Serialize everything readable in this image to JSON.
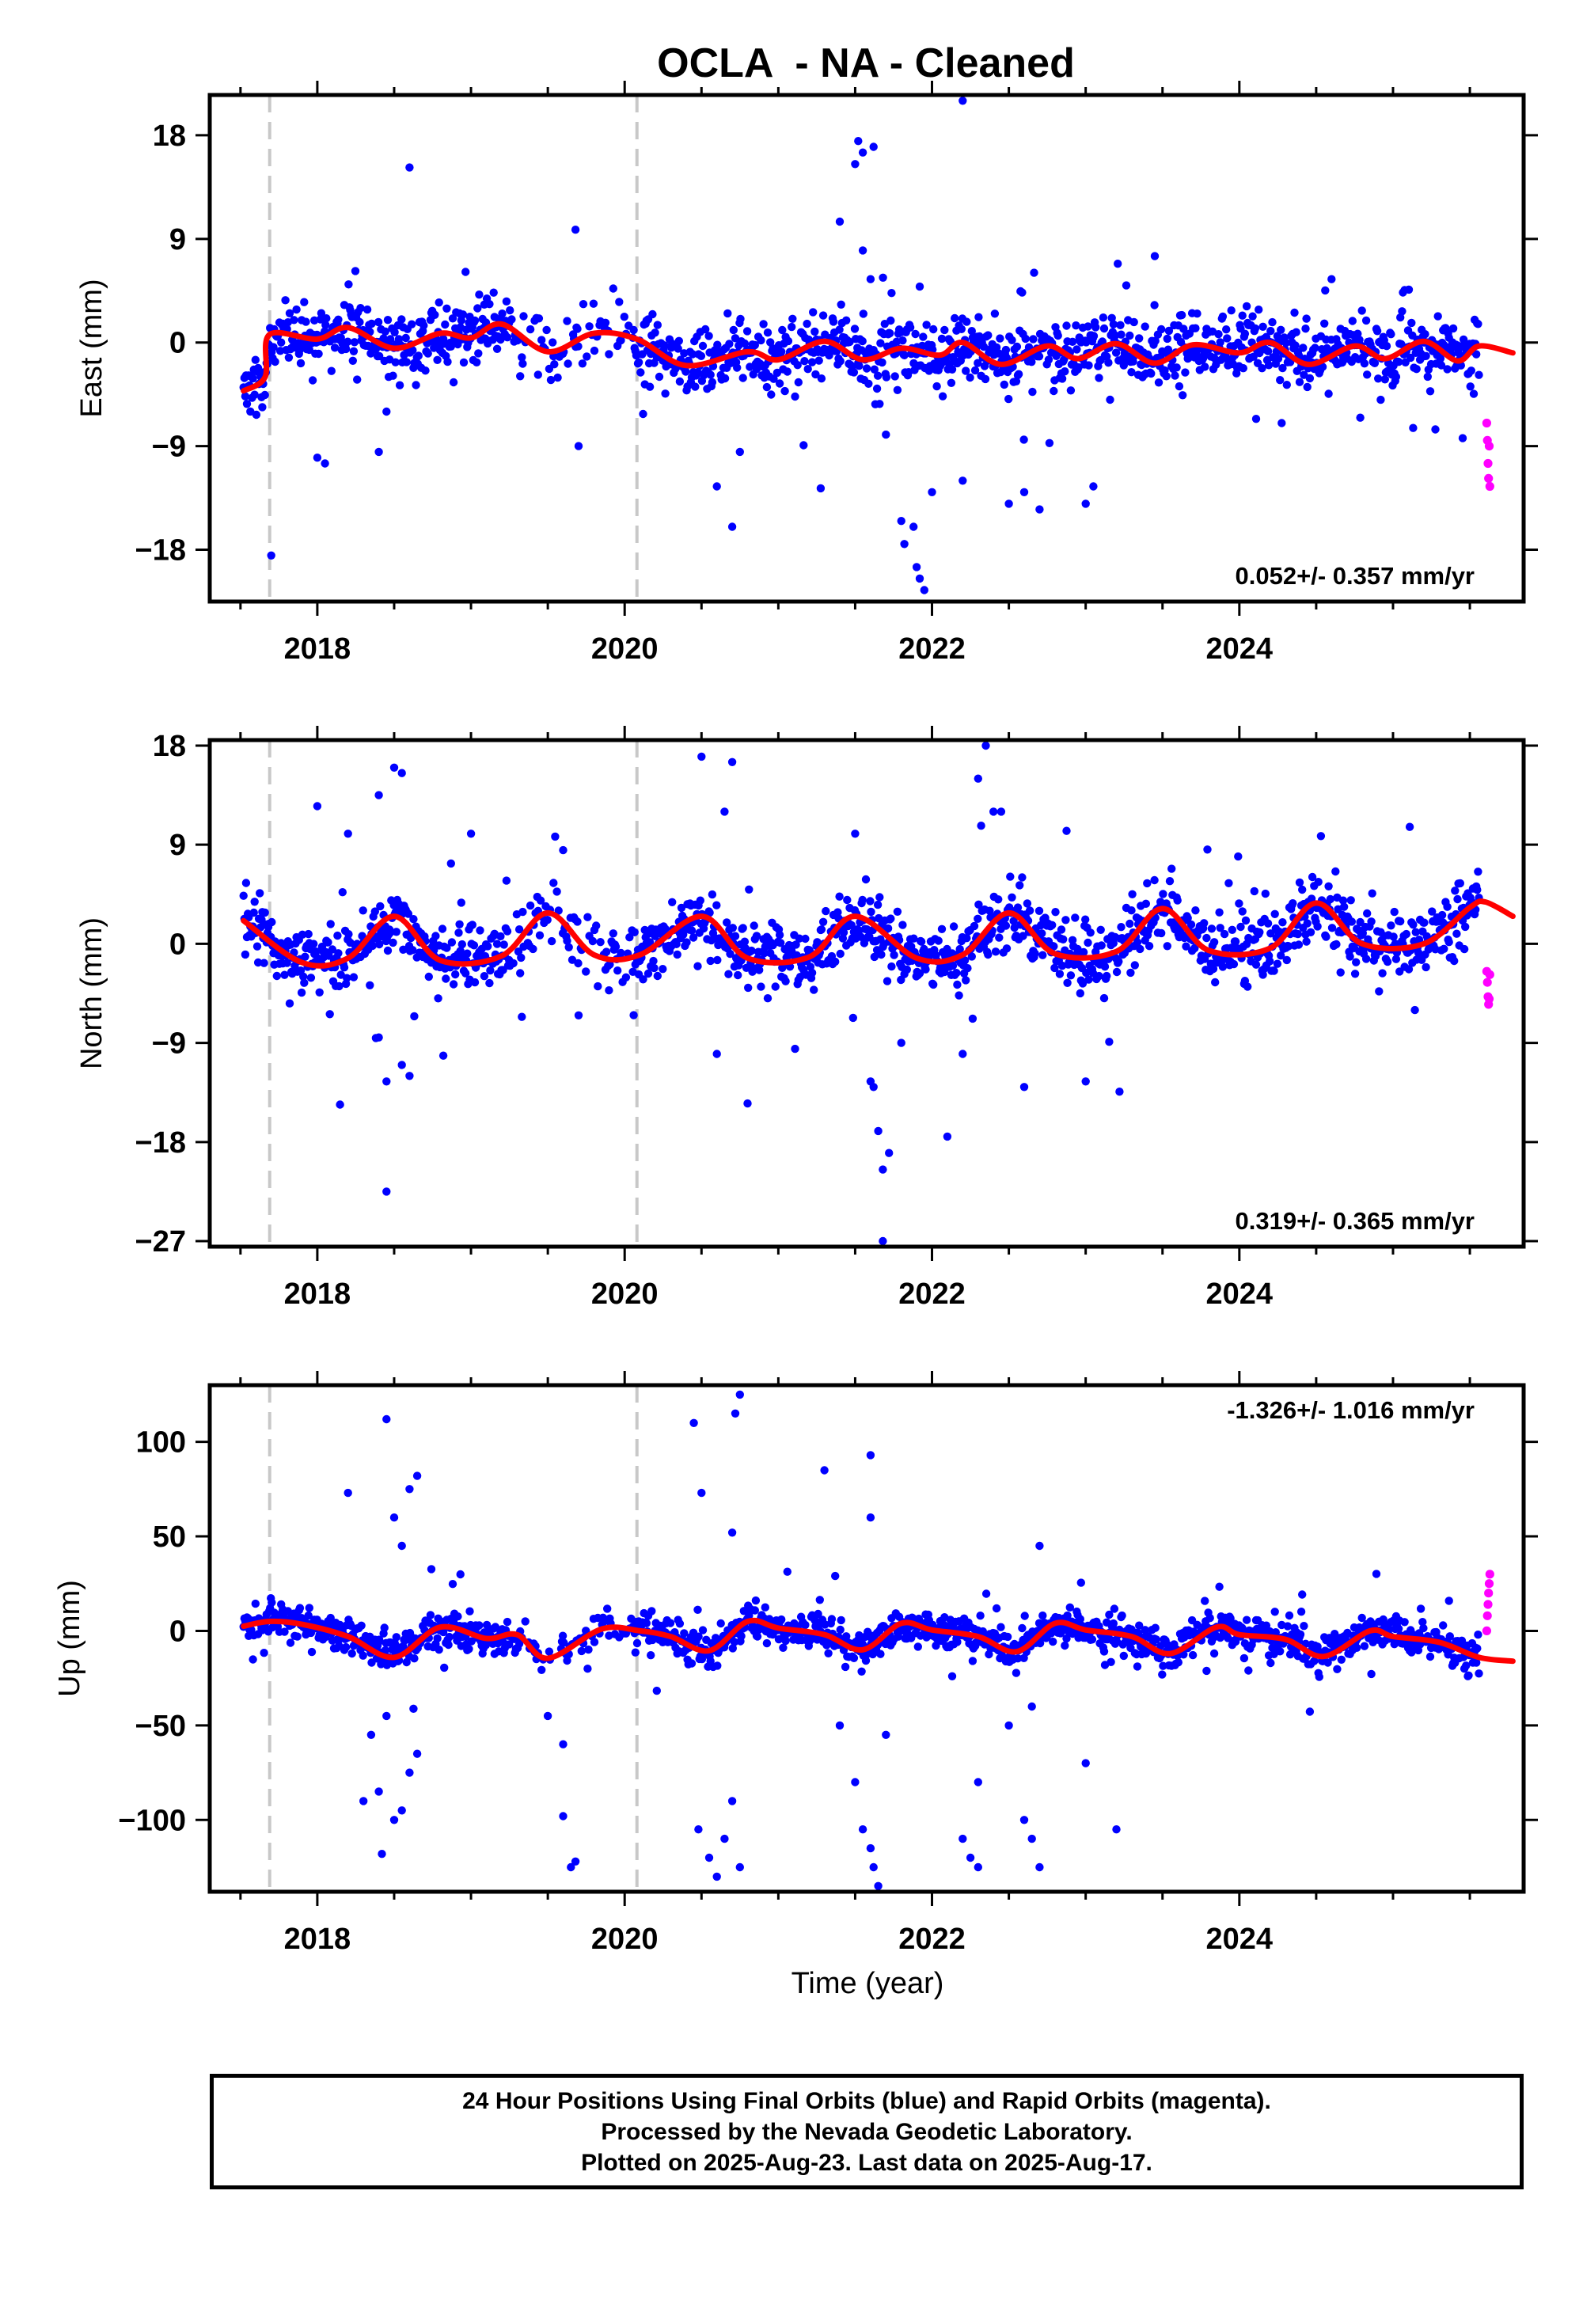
{
  "title": "OCLA  - NA - Cleaned",
  "xlabel": "Time (year)",
  "footer": {
    "lines": [
      "24 Hour Positions Using Final Orbits (blue) and Rapid Orbits (magenta).",
      "Processed by the Nevada Geodetic Laboratory.",
      "Plotted on 2025-Aug-23. Last data on 2025-Aug-17."
    ]
  },
  "colors": {
    "final_orbits": "#0000ff",
    "rapid_orbits": "#ff00ff",
    "model": "#ff0000",
    "dashed_lines": "#c8c8c8",
    "frame": "#000000"
  },
  "chart_data": [
    {
      "type": "scatter",
      "ylabel": "East (mm)",
      "rate_label": "0.052+/- 0.357 mm/yr",
      "xlim": [
        2017.3,
        2025.85
      ],
      "ylim": [
        -22.5,
        21.5
      ],
      "xticks": [
        2018,
        2020,
        2022,
        2024
      ],
      "yticks": [
        -18,
        -9,
        0,
        9,
        18
      ],
      "dashed_epochs": [
        2017.69,
        2020.08
      ],
      "final_epoch": 2025.56,
      "last_epoch": 2025.63,
      "model_knots": [
        [
          2017.52,
          -4.2
        ],
        [
          2017.66,
          -3.0
        ],
        [
          2017.69,
          0.7
        ],
        [
          2018.0,
          0.3
        ],
        [
          2018.2,
          1.3
        ],
        [
          2018.5,
          -0.5
        ],
        [
          2018.8,
          0.8
        ],
        [
          2019.0,
          0.4
        ],
        [
          2019.2,
          1.6
        ],
        [
          2019.5,
          -0.8
        ],
        [
          2019.8,
          0.8
        ],
        [
          2020.08,
          0.3
        ],
        [
          2020.4,
          -2.0
        ],
        [
          2020.8,
          -0.8
        ],
        [
          2021.0,
          -1.5
        ],
        [
          2021.3,
          0.1
        ],
        [
          2021.55,
          -1.5
        ],
        [
          2021.8,
          -0.5
        ],
        [
          2022.05,
          -1.1
        ],
        [
          2022.2,
          0.0
        ],
        [
          2022.45,
          -1.9
        ],
        [
          2022.75,
          -0.3
        ],
        [
          2022.95,
          -1.4
        ],
        [
          2023.2,
          -0.1
        ],
        [
          2023.45,
          -1.8
        ],
        [
          2023.7,
          -0.2
        ],
        [
          2024.0,
          -0.9
        ],
        [
          2024.2,
          0.0
        ],
        [
          2024.45,
          -1.9
        ],
        [
          2024.75,
          -0.3
        ],
        [
          2024.95,
          -1.4
        ],
        [
          2025.2,
          0.1
        ],
        [
          2025.42,
          -1.6
        ],
        [
          2025.56,
          -0.3
        ],
        [
          2025.78,
          -0.9
        ]
      ],
      "seasonal_amplitude": 1.2,
      "noise_sd": 1.4,
      "rapid_values": [
        -7.0,
        -8.5,
        -10.5,
        -11.8,
        -9.0,
        -12.5
      ],
      "outliers": [
        [
          2017.7,
          -18.5
        ],
        [
          2018.0,
          -10.0
        ],
        [
          2018.05,
          -10.5
        ],
        [
          2018.6,
          15.2
        ],
        [
          2018.4,
          -9.5
        ],
        [
          2018.45,
          -6.0
        ],
        [
          2019.7,
          -9.0
        ],
        [
          2019.68,
          9.8
        ],
        [
          2020.6,
          -12.5
        ],
        [
          2020.7,
          -16.0
        ],
        [
          2020.75,
          -9.5
        ],
        [
          2021.4,
          10.5
        ],
        [
          2021.5,
          15.5
        ],
        [
          2021.52,
          17.5
        ],
        [
          2021.55,
          16.5
        ],
        [
          2021.62,
          17.0
        ],
        [
          2021.55,
          8.0
        ],
        [
          2021.6,
          5.5
        ],
        [
          2021.7,
          -8.0
        ],
        [
          2021.8,
          -15.5
        ],
        [
          2021.82,
          -17.5
        ],
        [
          2021.88,
          -16.0
        ],
        [
          2021.9,
          -19.5
        ],
        [
          2021.95,
          -21.5
        ],
        [
          2021.92,
          -20.5
        ],
        [
          2022.0,
          -13.0
        ],
        [
          2022.2,
          21.0
        ],
        [
          2022.2,
          -12.0
        ],
        [
          2022.5,
          -14.0
        ],
        [
          2022.6,
          -13.0
        ],
        [
          2022.7,
          -14.5
        ],
        [
          2023.0,
          -14.0
        ],
        [
          2023.05,
          -12.5
        ],
        [
          2023.45,
          7.5
        ],
        [
          2024.6,
          5.5
        ]
      ]
    },
    {
      "type": "scatter",
      "ylabel": "North (mm)",
      "rate_label": "0.319+/- 0.365 mm/yr",
      "xlim": [
        2017.3,
        2025.85
      ],
      "ylim": [
        -27.5,
        18.5
      ],
      "xticks": [
        2018,
        2020,
        2022,
        2024
      ],
      "yticks": [
        -27,
        -18,
        -9,
        0,
        9,
        18
      ],
      "dashed_epochs": [
        2017.69,
        2020.08
      ],
      "final_epoch": 2025.56,
      "last_epoch": 2025.63,
      "model_knots": [
        [
          2017.52,
          2.1
        ],
        [
          2017.9,
          -1.7
        ],
        [
          2018.2,
          -1.3
        ],
        [
          2018.5,
          2.5
        ],
        [
          2018.8,
          -1.5
        ],
        [
          2019.2,
          -1.1
        ],
        [
          2019.5,
          2.8
        ],
        [
          2019.8,
          -1.0
        ],
        [
          2020.1,
          -1.0
        ],
        [
          2020.5,
          2.5
        ],
        [
          2020.8,
          -1.3
        ],
        [
          2021.2,
          -1.2
        ],
        [
          2021.5,
          2.5
        ],
        [
          2021.9,
          -1.3
        ],
        [
          2022.2,
          -1.0
        ],
        [
          2022.5,
          2.8
        ],
        [
          2022.8,
          -0.9
        ],
        [
          2023.2,
          -0.7
        ],
        [
          2023.5,
          3.2
        ],
        [
          2023.8,
          -0.6
        ],
        [
          2024.2,
          -0.4
        ],
        [
          2024.5,
          3.7
        ],
        [
          2024.8,
          0.0
        ],
        [
          2025.2,
          0.0
        ],
        [
          2025.5,
          3.3
        ],
        [
          2025.6,
          3.8
        ],
        [
          2025.78,
          2.5
        ]
      ],
      "seasonal_amplitude": 2.5,
      "noise_sd": 1.5,
      "rapid_values": [
        -2.5,
        -3.5,
        -4.8,
        -5.5,
        -5.0,
        -2.8
      ],
      "outliers": [
        [
          2018.0,
          12.5
        ],
        [
          2018.2,
          10.0
        ],
        [
          2018.4,
          13.5
        ],
        [
          2018.5,
          16.0
        ],
        [
          2018.55,
          15.5
        ],
        [
          2018.45,
          -12.5
        ],
        [
          2018.55,
          -11.0
        ],
        [
          2018.6,
          -12.0
        ],
        [
          2018.45,
          -22.5
        ],
        [
          2018.4,
          -8.5
        ],
        [
          2019.0,
          10.0
        ],
        [
          2019.6,
          8.5
        ],
        [
          2019.7,
          -6.5
        ],
        [
          2020.5,
          17.0
        ],
        [
          2020.7,
          16.5
        ],
        [
          2020.65,
          12.0
        ],
        [
          2020.6,
          -10.0
        ],
        [
          2020.8,
          -14.5
        ],
        [
          2021.6,
          -12.5
        ],
        [
          2021.62,
          -13.0
        ],
        [
          2021.65,
          -17.0
        ],
        [
          2021.68,
          -20.5
        ],
        [
          2021.72,
          -19.0
        ],
        [
          2021.68,
          -27.0
        ],
        [
          2021.5,
          10.0
        ],
        [
          2021.8,
          -9.0
        ],
        [
          2022.1,
          -17.5
        ],
        [
          2022.2,
          -10.0
        ],
        [
          2022.3,
          15.0
        ],
        [
          2022.35,
          18.0
        ],
        [
          2022.4,
          12.0
        ],
        [
          2022.45,
          12.0
        ],
        [
          2022.6,
          -13.0
        ],
        [
          2023.0,
          -12.5
        ],
        [
          2023.4,
          5.5
        ]
      ]
    },
    {
      "type": "scatter",
      "ylabel": "Up (mm)",
      "rate_label": "-1.326+/- 1.016 mm/yr",
      "xlim": [
        2017.3,
        2025.85
      ],
      "ylim": [
        -138,
        130
      ],
      "xticks": [
        2018,
        2020,
        2022,
        2024
      ],
      "yticks": [
        -100,
        -50,
        0,
        50,
        100
      ],
      "dashed_epochs": [
        2017.69,
        2020.08
      ],
      "final_epoch": 2025.56,
      "last_epoch": 2025.63,
      "model_knots": [
        [
          2017.52,
          2.5
        ],
        [
          2017.69,
          5.0
        ],
        [
          2017.9,
          3.5
        ],
        [
          2018.2,
          -3.0
        ],
        [
          2018.5,
          -14.0
        ],
        [
          2018.8,
          2.0
        ],
        [
          2019.1,
          -4.0
        ],
        [
          2019.3,
          -2.0
        ],
        [
          2019.5,
          -14.5
        ],
        [
          2019.85,
          1.0
        ],
        [
          2020.1,
          0.0
        ],
        [
          2020.3,
          -3.0
        ],
        [
          2020.55,
          -10.5
        ],
        [
          2020.8,
          5.0
        ],
        [
          2021.0,
          1.5
        ],
        [
          2021.3,
          -2.0
        ],
        [
          2021.55,
          -10.0
        ],
        [
          2021.8,
          4.0
        ],
        [
          2022.0,
          0.5
        ],
        [
          2022.3,
          -3.0
        ],
        [
          2022.55,
          -11.0
        ],
        [
          2022.8,
          4.0
        ],
        [
          2023.0,
          0.5
        ],
        [
          2023.3,
          -3.0
        ],
        [
          2023.55,
          -12.0
        ],
        [
          2023.85,
          2.0
        ],
        [
          2024.0,
          -2.0
        ],
        [
          2024.3,
          -4.5
        ],
        [
          2024.55,
          -13.5
        ],
        [
          2024.85,
          0.0
        ],
        [
          2025.0,
          -3.0
        ],
        [
          2025.3,
          -6.0
        ],
        [
          2025.56,
          -14.0
        ],
        [
          2025.78,
          -16.0
        ]
      ],
      "seasonal_amplitude": 6,
      "noise_sd": 4.5,
      "rapid_values": [
        0,
        8,
        14,
        20,
        25,
        30
      ],
      "outliers": [
        [
          2018.45,
          112
        ],
        [
          2018.5,
          60
        ],
        [
          2018.55,
          45
        ],
        [
          2018.6,
          75
        ],
        [
          2018.65,
          82
        ],
        [
          2018.4,
          -85
        ],
        [
          2018.42,
          -118
        ],
        [
          2018.5,
          -100
        ],
        [
          2018.55,
          -95
        ],
        [
          2018.6,
          -75
        ],
        [
          2018.65,
          -65
        ],
        [
          2018.3,
          -90
        ],
        [
          2018.2,
          73
        ],
        [
          2018.35,
          -55
        ],
        [
          2018.45,
          -45
        ],
        [
          2019.5,
          -45
        ],
        [
          2019.6,
          -60
        ],
        [
          2019.6,
          -98
        ],
        [
          2019.65,
          -125
        ],
        [
          2019.68,
          -122
        ],
        [
          2020.45,
          110
        ],
        [
          2020.5,
          73
        ],
        [
          2020.48,
          -105
        ],
        [
          2020.55,
          -120
        ],
        [
          2020.6,
          -130
        ],
        [
          2020.65,
          -110
        ],
        [
          2020.7,
          52
        ],
        [
          2020.72,
          115
        ],
        [
          2020.75,
          125
        ],
        [
          2020.7,
          -90
        ],
        [
          2020.75,
          -125
        ],
        [
          2021.3,
          85
        ],
        [
          2021.4,
          -50
        ],
        [
          2021.5,
          -80
        ],
        [
          2021.55,
          -105
        ],
        [
          2021.6,
          -115
        ],
        [
          2021.62,
          -125
        ],
        [
          2021.65,
          -135
        ],
        [
          2021.6,
          93
        ],
        [
          2021.6,
          60
        ],
        [
          2021.7,
          -55
        ],
        [
          2022.2,
          -110
        ],
        [
          2022.25,
          -120
        ],
        [
          2022.3,
          -125
        ],
        [
          2022.3,
          -80
        ],
        [
          2022.5,
          -50
        ],
        [
          2022.6,
          -100
        ],
        [
          2022.65,
          -110
        ],
        [
          2022.7,
          -125
        ],
        [
          2022.7,
          45
        ],
        [
          2022.65,
          -40
        ],
        [
          2023.0,
          -70
        ],
        [
          2023.2,
          -105
        ]
      ]
    }
  ]
}
